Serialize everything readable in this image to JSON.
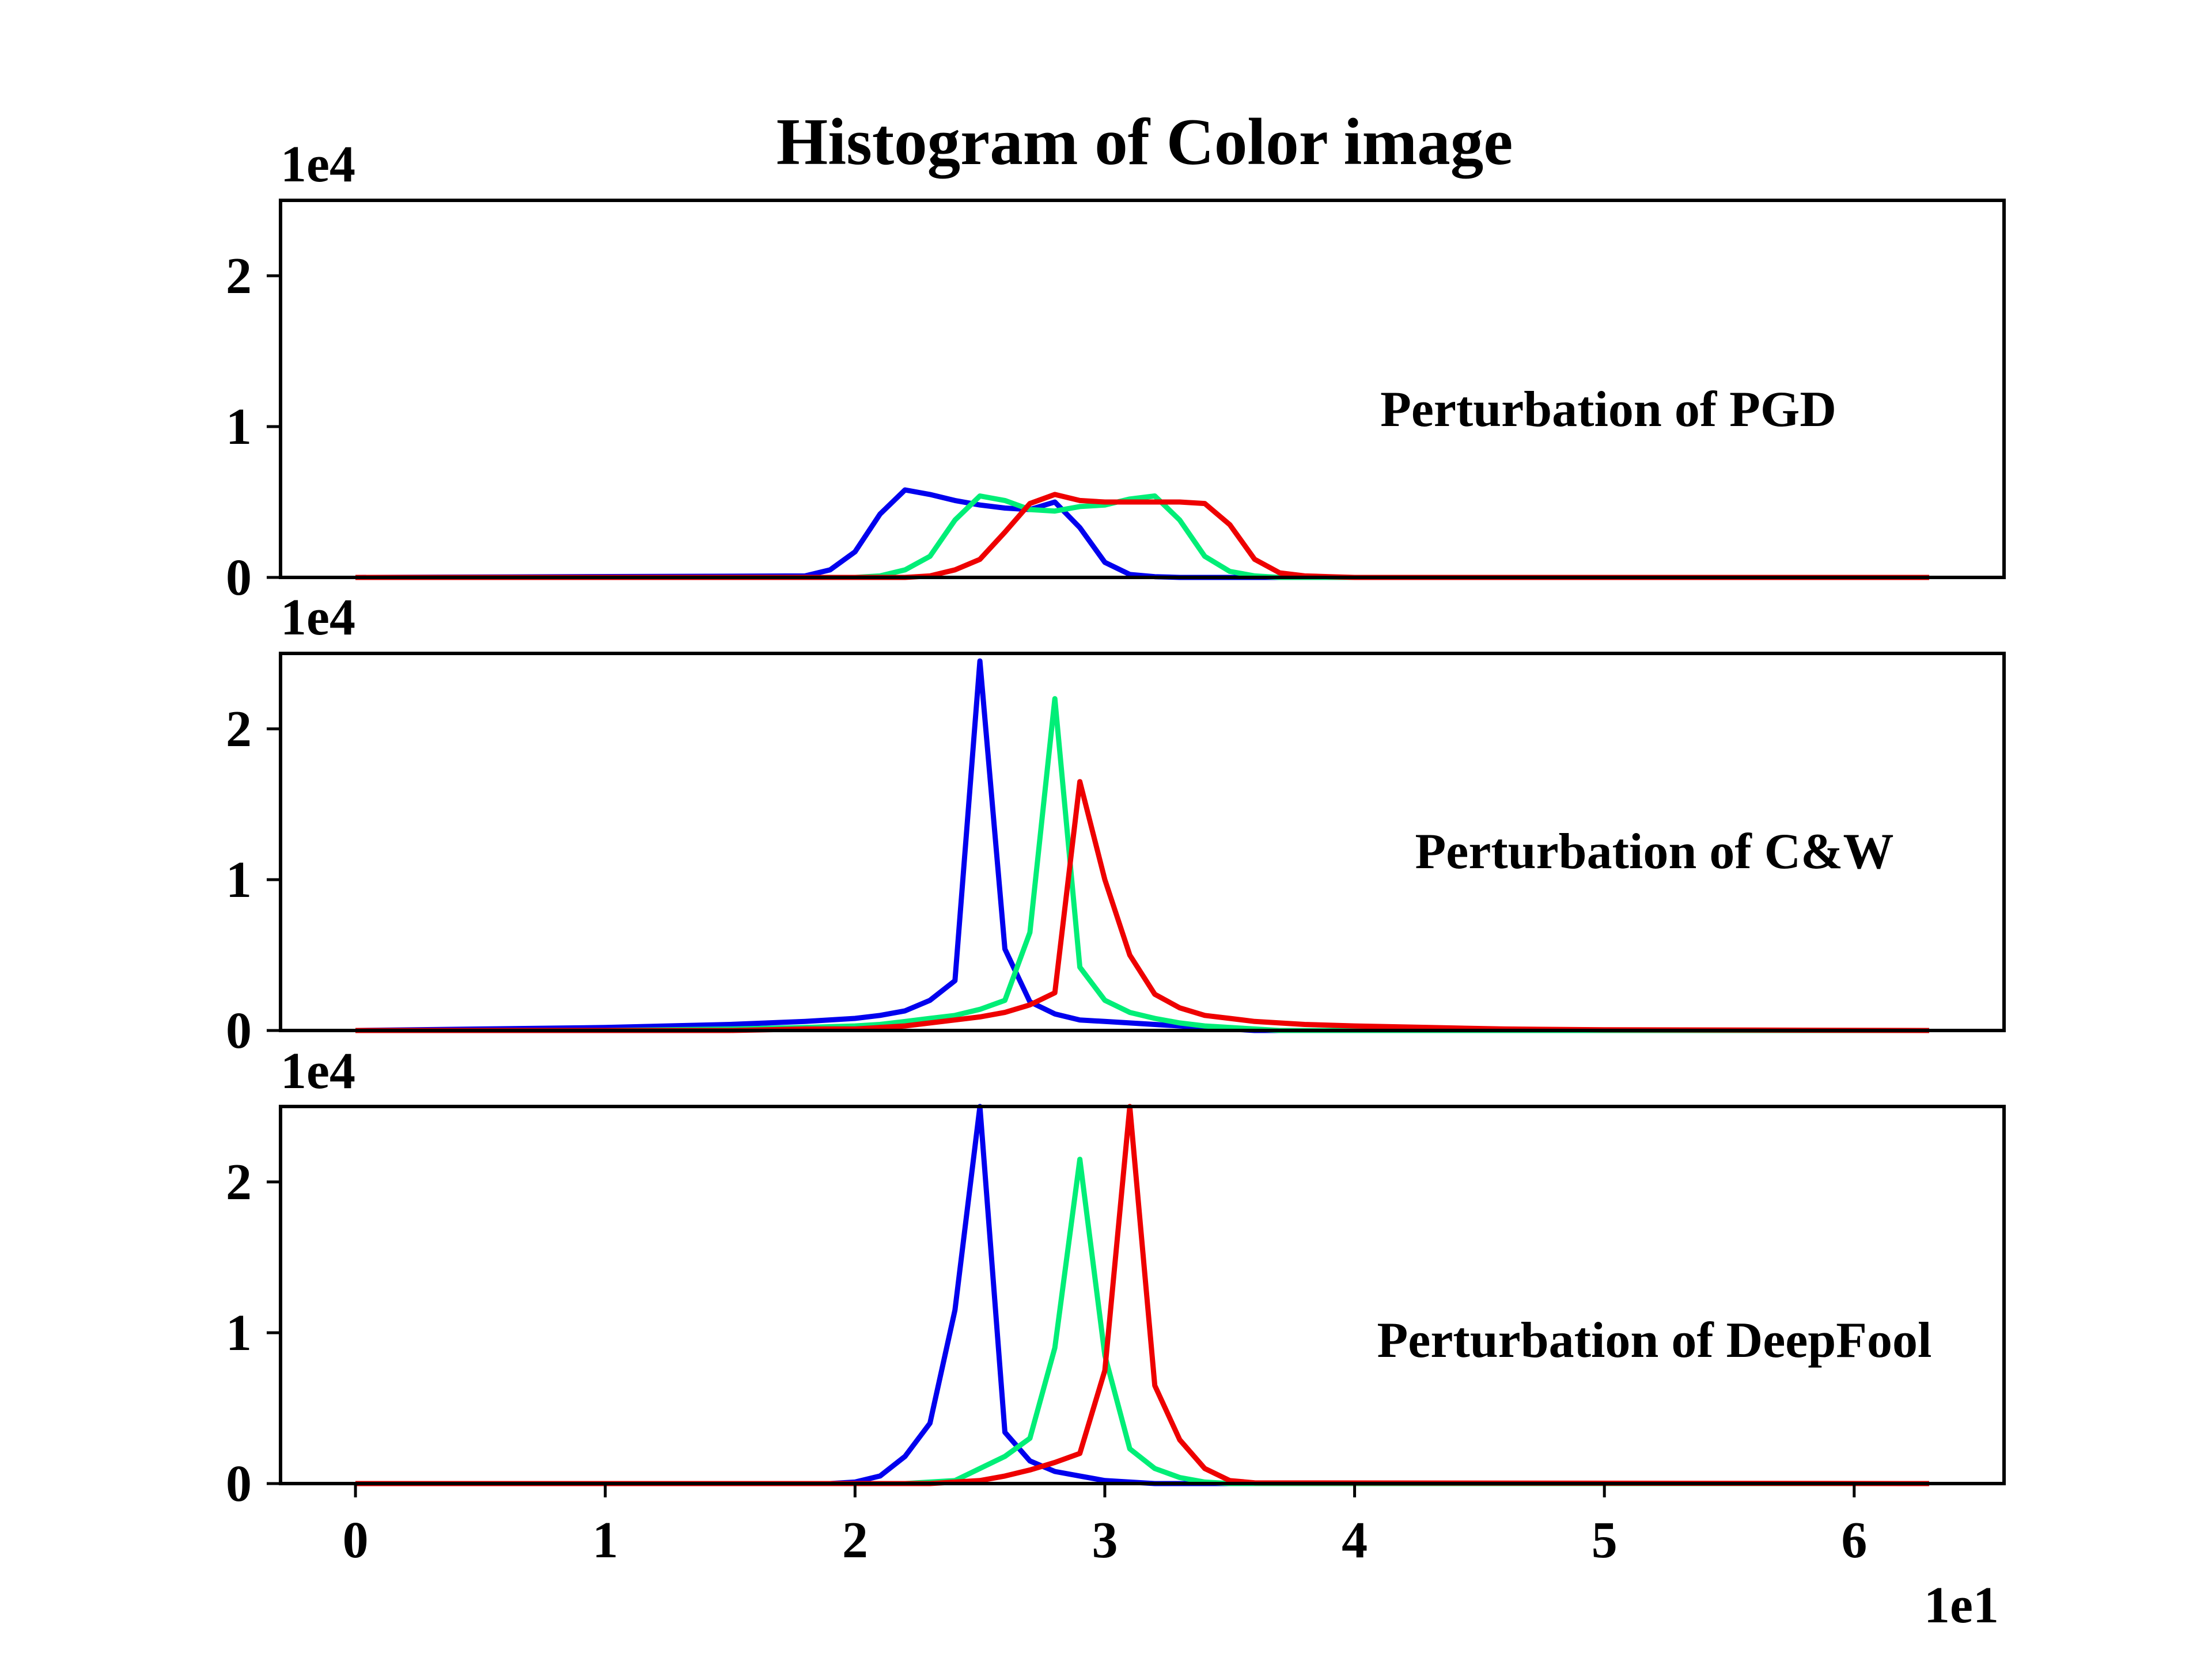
{
  "chart_data": [
    {
      "type": "line",
      "title": "Histogram of Color image",
      "annotation": "Perturbation of PGD",
      "y_scale_label": "1e4",
      "x_scale_label": "",
      "xlim": [
        -0.3,
        6.6
      ],
      "ylim": [
        0,
        2.5
      ],
      "xticks": [
        "0",
        "1",
        "2",
        "3",
        "4",
        "5",
        "6"
      ],
      "yticks": [
        "0",
        "1",
        "2"
      ],
      "x": [
        0.0,
        1.8,
        1.9,
        2.0,
        2.1,
        2.2,
        2.3,
        2.4,
        2.5,
        2.6,
        2.7,
        2.8,
        2.9,
        3.0,
        3.1,
        3.2,
        3.3,
        3.4,
        3.5,
        3.6,
        3.7,
        3.8,
        3.9,
        4.0,
        6.3
      ],
      "series": [
        {
          "color": "#0000ee",
          "values": [
            0,
            0.01,
            0.05,
            0.17,
            0.42,
            0.58,
            0.55,
            0.51,
            0.48,
            0.46,
            0.45,
            0.5,
            0.33,
            0.1,
            0.02,
            0.005,
            0,
            0,
            0,
            0,
            0,
            0,
            0,
            0,
            0
          ]
        },
        {
          "color": "#00ee77",
          "values": [
            0,
            0,
            0,
            0,
            0.01,
            0.05,
            0.14,
            0.38,
            0.54,
            0.51,
            0.45,
            0.44,
            0.47,
            0.48,
            0.52,
            0.54,
            0.38,
            0.14,
            0.04,
            0.01,
            0,
            0,
            0,
            0,
            0
          ]
        },
        {
          "color": "#ee0000",
          "values": [
            0,
            0,
            0,
            0,
            0,
            0,
            0.01,
            0.05,
            0.12,
            0.3,
            0.49,
            0.55,
            0.51,
            0.5,
            0.5,
            0.5,
            0.5,
            0.49,
            0.35,
            0.12,
            0.03,
            0.01,
            0.005,
            0,
            0
          ]
        }
      ]
    },
    {
      "type": "line",
      "annotation": "Perturbation of C&W",
      "y_scale_label": "1e4",
      "x_scale_label": "",
      "xlim": [
        -0.3,
        6.6
      ],
      "ylim": [
        0,
        2.5
      ],
      "xticks": [
        "0",
        "1",
        "2",
        "3",
        "4",
        "5",
        "6"
      ],
      "yticks": [
        "0",
        "1",
        "2"
      ],
      "x": [
        0.0,
        0.5,
        1.0,
        1.5,
        1.8,
        2.0,
        2.1,
        2.2,
        2.3,
        2.4,
        2.5,
        2.6,
        2.7,
        2.8,
        2.9,
        3.0,
        3.1,
        3.2,
        3.3,
        3.4,
        3.5,
        3.6,
        3.7,
        3.8,
        4.0,
        4.3,
        4.6,
        5.0,
        6.3
      ],
      "series": [
        {
          "color": "#0000ee",
          "values": [
            0.0,
            0.01,
            0.02,
            0.04,
            0.06,
            0.08,
            0.1,
            0.13,
            0.2,
            0.33,
            2.45,
            0.54,
            0.19,
            0.11,
            0.07,
            0.06,
            0.05,
            0.04,
            0.03,
            0.02,
            0.01,
            0,
            0,
            0,
            0,
            0,
            0,
            0,
            0
          ]
        },
        {
          "color": "#00ee77",
          "values": [
            0.0,
            0.0,
            0.0,
            0.01,
            0.02,
            0.03,
            0.04,
            0.06,
            0.08,
            0.1,
            0.14,
            0.2,
            0.65,
            2.2,
            0.42,
            0.2,
            0.12,
            0.08,
            0.05,
            0.03,
            0.02,
            0.01,
            0,
            0,
            0,
            0,
            0,
            0,
            0
          ]
        },
        {
          "color": "#ee0000",
          "values": [
            0.0,
            0.0,
            0.0,
            0.0,
            0.01,
            0.01,
            0.02,
            0.03,
            0.05,
            0.07,
            0.09,
            0.12,
            0.17,
            0.25,
            1.65,
            1.0,
            0.5,
            0.24,
            0.15,
            0.1,
            0.08,
            0.06,
            0.05,
            0.04,
            0.03,
            0.02,
            0.01,
            0.005,
            0
          ]
        }
      ]
    },
    {
      "type": "line",
      "annotation": "Perturbation of DeepFool",
      "y_scale_label": "1e4",
      "x_scale_label": "1e1",
      "xlim": [
        -0.3,
        6.6
      ],
      "ylim": [
        0,
        2.5
      ],
      "xticks": [
        "0",
        "1",
        "2",
        "3",
        "4",
        "5",
        "6"
      ],
      "yticks": [
        "0",
        "1",
        "2"
      ],
      "x": [
        0.0,
        1.9,
        2.0,
        2.1,
        2.2,
        2.3,
        2.4,
        2.5,
        2.6,
        2.7,
        2.8,
        2.9,
        3.0,
        3.1,
        3.2,
        3.3,
        3.4,
        3.5,
        3.6,
        6.3
      ],
      "series": [
        {
          "color": "#0000ee",
          "values": [
            0,
            0,
            0.01,
            0.05,
            0.18,
            0.4,
            1.15,
            2.5,
            0.34,
            0.15,
            0.08,
            0.05,
            0.02,
            0.01,
            0,
            0,
            0,
            0,
            0,
            0
          ]
        },
        {
          "color": "#00ee77",
          "values": [
            0,
            0,
            0,
            0,
            0,
            0.01,
            0.02,
            0.1,
            0.18,
            0.3,
            0.9,
            2.15,
            0.85,
            0.23,
            0.1,
            0.04,
            0.01,
            0,
            0,
            0
          ]
        },
        {
          "color": "#ee0000",
          "values": [
            0,
            0,
            0,
            0,
            0,
            0,
            0.01,
            0.02,
            0.05,
            0.09,
            0.14,
            0.2,
            0.75,
            2.5,
            0.65,
            0.29,
            0.1,
            0.02,
            0.005,
            0
          ]
        }
      ]
    }
  ]
}
